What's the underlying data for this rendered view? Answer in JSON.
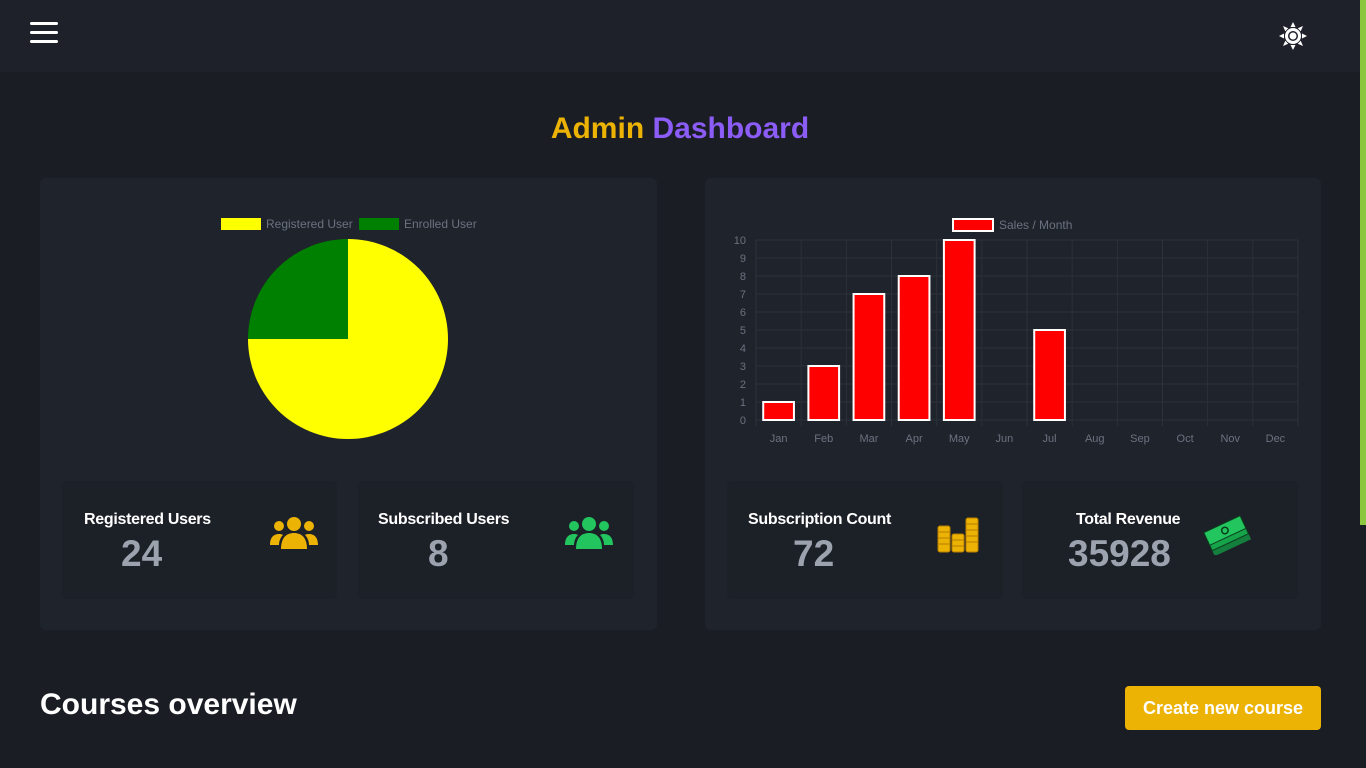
{
  "header": {
    "menu_icon": "hamburger-menu-icon",
    "theme_icon": "sun-icon"
  },
  "page_title": {
    "part1": "Admin",
    "part2": "Dashboard"
  },
  "colors": {
    "accent_yellow": "#ecb204",
    "accent_purple": "#8b5cf6",
    "pie_registered": "#ffff00",
    "pie_enrolled": "#008000",
    "bar_fill": "#ff0000",
    "scroll_thumb": "#8dc63f",
    "icon_green": "#22c55e"
  },
  "users_chart": {
    "legend": [
      {
        "label": "Registered User",
        "color": "#ffff00"
      },
      {
        "label": "Enrolled User",
        "color": "#008000"
      }
    ]
  },
  "sales_chart": {
    "legend": [
      {
        "label": "Sales / Month",
        "color": "#ff0000"
      }
    ]
  },
  "chart_data": [
    {
      "type": "pie",
      "categories": [
        "Registered User",
        "Enrolled User"
      ],
      "values": [
        24,
        8
      ]
    },
    {
      "type": "bar",
      "categories": [
        "Jan",
        "Feb",
        "Mar",
        "Apr",
        "May",
        "Jun",
        "Jul",
        "Aug",
        "Sep",
        "Oct",
        "Nov",
        "Dec"
      ],
      "series": [
        {
          "name": "Sales / Month",
          "values": [
            1,
            3,
            7,
            8,
            10,
            0,
            5,
            0,
            0,
            0,
            0,
            0
          ]
        }
      ],
      "ylim": [
        0,
        10
      ],
      "yticks": [
        "0",
        "1",
        "2",
        "3",
        "4",
        "5",
        "6",
        "7",
        "8",
        "9",
        "10"
      ],
      "grid": true,
      "legend_position": "top"
    }
  ],
  "stats": {
    "registered": {
      "label": "Registered Users",
      "value": "24",
      "icon": "users-group-icon"
    },
    "subscribed": {
      "label": "Subscribed Users",
      "value": "8",
      "icon": "users-group-icon"
    },
    "subscription": {
      "label": "Subscription Count",
      "value": "72",
      "icon": "coin-stacks-icon"
    },
    "revenue": {
      "label": "Total Revenue",
      "value": "35928",
      "icon": "money-stack-icon"
    }
  },
  "courses": {
    "title": "Courses overview",
    "create_button": "Create new course"
  }
}
